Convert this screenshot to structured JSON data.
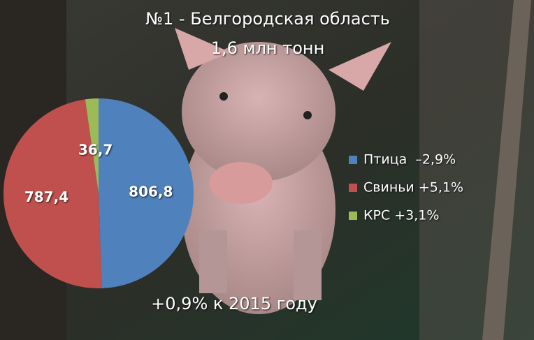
{
  "chart_data": {
    "type": "pie",
    "title": "№1 - Белгородская область",
    "subtitle": "1,6 млн тонн",
    "annotation": "+0,9% к 2015 году",
    "categories": [
      "Птица  –2,9%",
      "Свиньи +5,1%",
      "КРС +3,1%"
    ],
    "values": [
      806.8,
      787.4,
      36.7
    ],
    "value_labels": [
      "806,8",
      "787,4",
      "36,7"
    ],
    "colors": [
      "#4f81bd",
      "#c0504d",
      "#9bbb59"
    ],
    "legend": "right"
  }
}
